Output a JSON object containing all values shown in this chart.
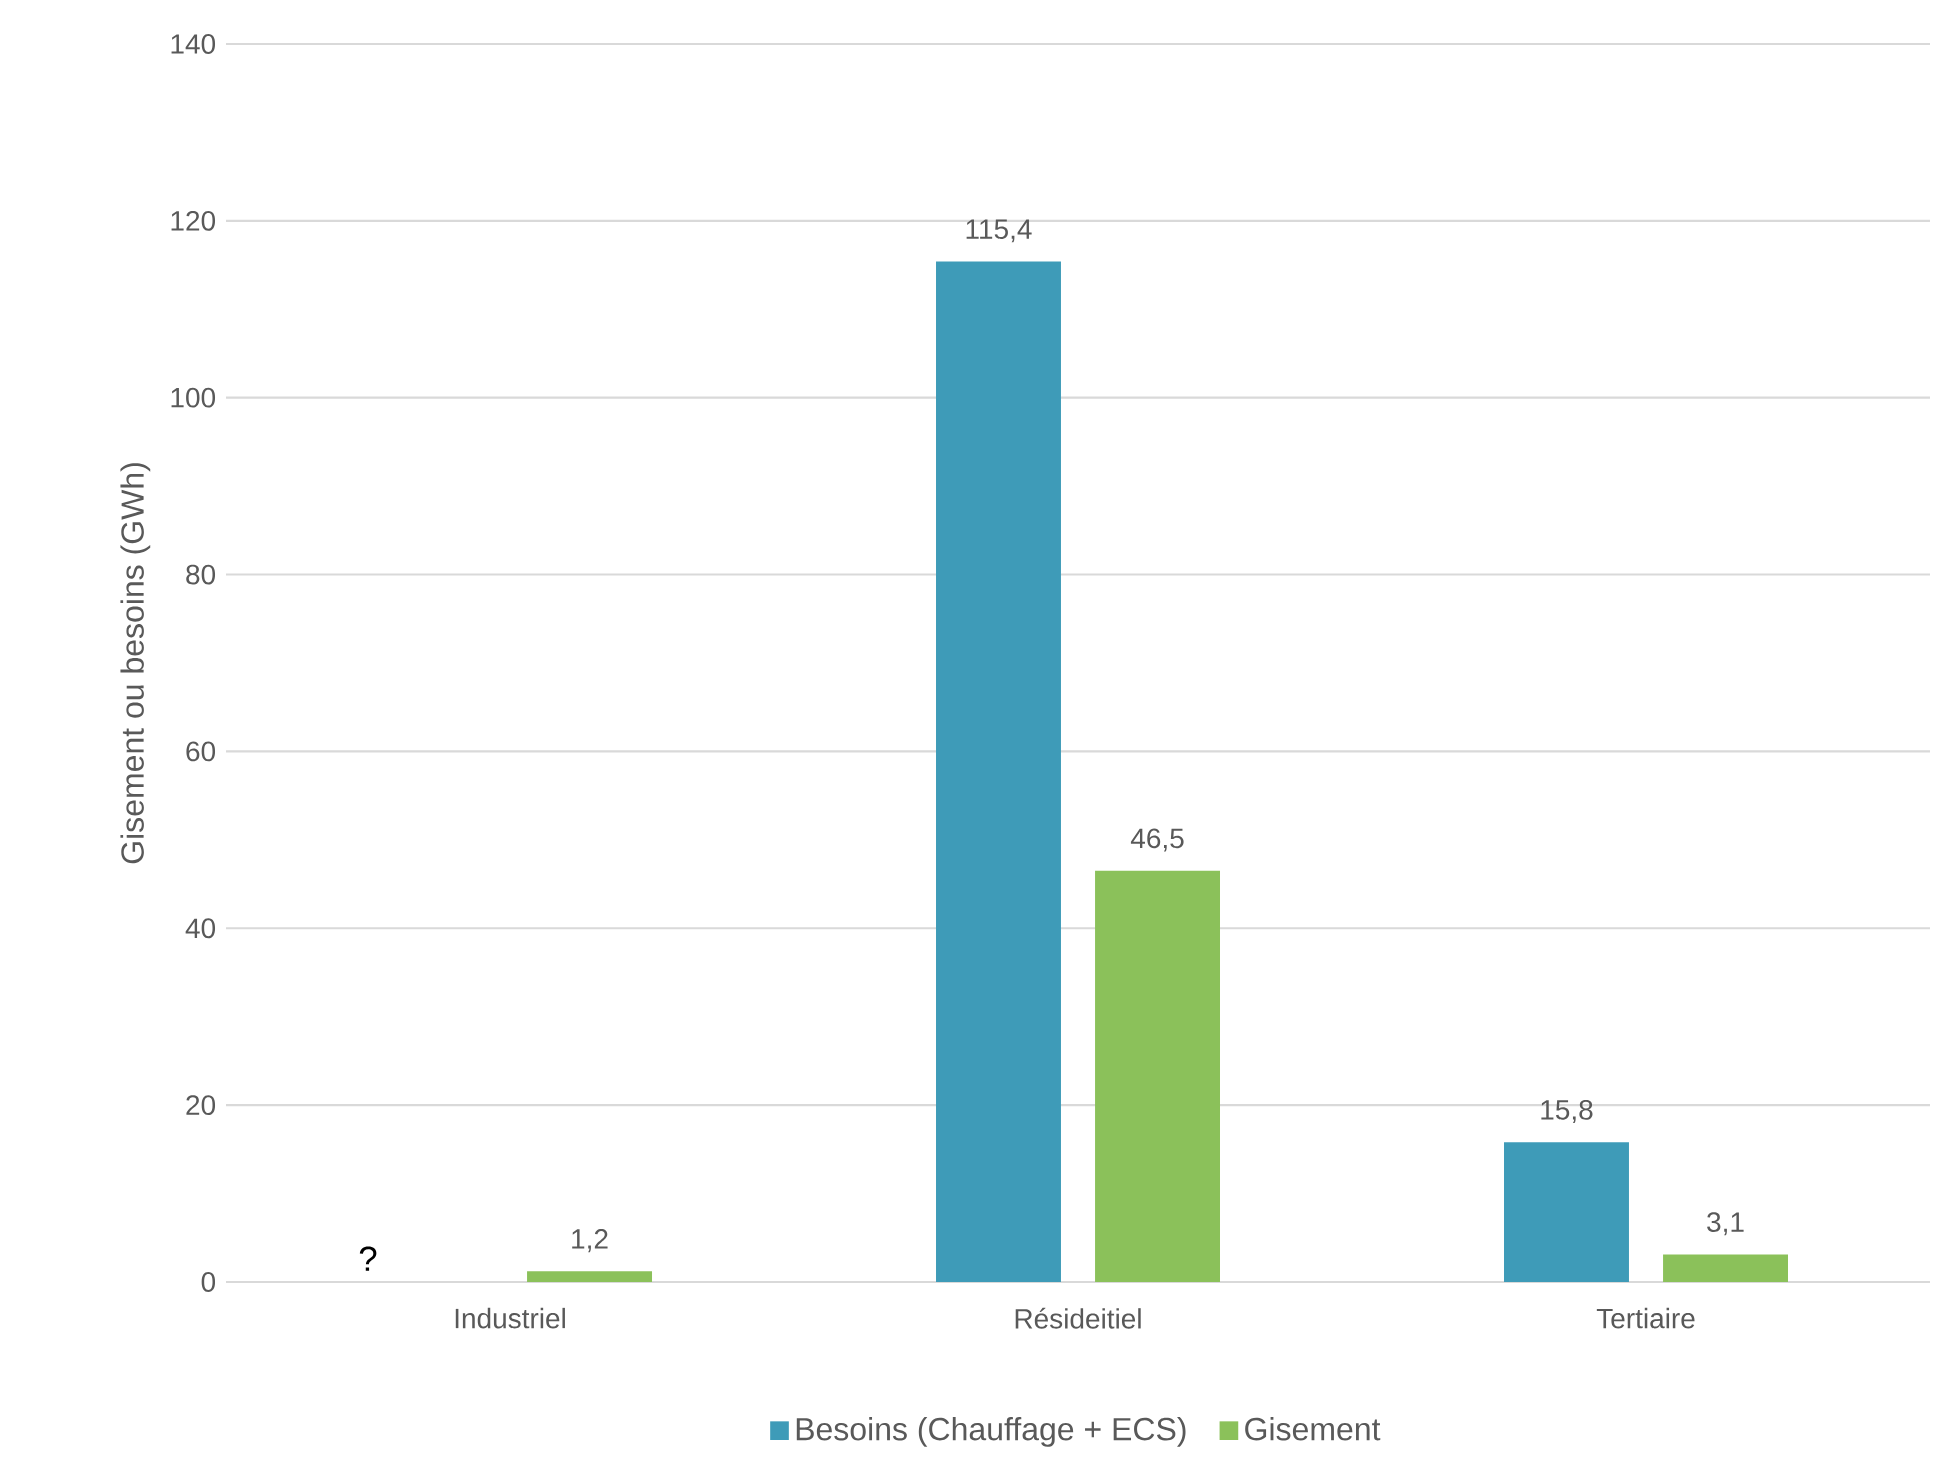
{
  "chart_data": {
    "type": "bar",
    "ylabel": "Gisement ou besoins (GWh)",
    "categories": [
      "Industriel",
      "Résideitiel",
      "Tertiaire"
    ],
    "series": [
      {
        "name": "Besoins (Chauffage + ECS)",
        "color": "#3e9bb8",
        "values": [
          null,
          115.4,
          15.8
        ],
        "value_labels": [
          null,
          "115,4",
          "15,8"
        ]
      },
      {
        "name": "Gisement",
        "color": "#8bc15a",
        "values": [
          1.2,
          46.5,
          3.1
        ],
        "value_labels": [
          "1,2",
          "46,5",
          "3,1"
        ]
      }
    ],
    "ylim": [
      0,
      140
    ],
    "yticks": [
      0,
      20,
      40,
      60,
      80,
      100,
      120,
      140
    ],
    "grid": "y",
    "legend": "bottom",
    "annotations": [
      "?"
    ]
  }
}
